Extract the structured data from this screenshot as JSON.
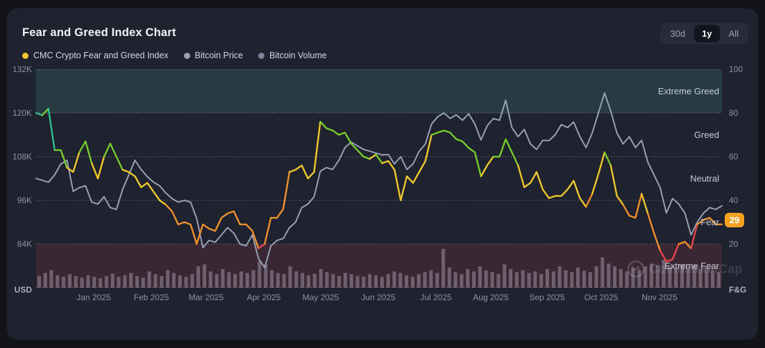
{
  "title": "Fear and Greed Index Chart",
  "controls": {
    "ranges": [
      {
        "label": "30d",
        "selected": false
      },
      {
        "label": "1y",
        "selected": true
      },
      {
        "label": "All",
        "selected": false
      }
    ]
  },
  "legend": [
    {
      "label": "CMC Crypto Fear and Greed Index",
      "color": "#efc72c"
    },
    {
      "label": "Bitcoin Price",
      "color": "#9aa1b4"
    },
    {
      "label": "Bitcoin Volume",
      "color": "#7d8499"
    }
  ],
  "watermark": {
    "text": "CoinMarketCap"
  },
  "badge": {
    "value": "29",
    "color": "#f3a321"
  },
  "axes": {
    "left": {
      "title": "USD",
      "ticks": [
        "132K",
        "120K",
        "108K",
        "96K",
        "84K"
      ]
    },
    "right": {
      "title": "F&G",
      "ticks": [
        "100",
        "80",
        "60",
        "40",
        "20"
      ]
    },
    "x": {
      "labels": [
        "Jan 2025",
        "Feb 2025",
        "Mar 2025",
        "Apr 2025",
        "May 2025",
        "Jun 2025",
        "Jul 2025",
        "Aug 2025",
        "Sep 2025",
        "Oct 2025",
        "Nov 2025"
      ],
      "positions": [
        0.084,
        0.168,
        0.248,
        0.332,
        0.415,
        0.499,
        0.583,
        0.663,
        0.745,
        0.824,
        0.909
      ]
    }
  },
  "zones": [
    {
      "name": "Extreme Greed",
      "min": 80,
      "max": 100,
      "line_color": "#2fbf90",
      "band_color": "#273c42"
    },
    {
      "name": "Greed",
      "min": 60,
      "max": 80,
      "line_color": "#76cc2c",
      "band_color": null
    },
    {
      "name": "Neutral",
      "min": 40,
      "max": 60,
      "line_color": "#efc92c",
      "band_color": null
    },
    {
      "name": "Fear",
      "min": 20,
      "max": 40,
      "line_color": "#f0912d",
      "band_color": null
    },
    {
      "name": "Extreme Fear",
      "min": 0,
      "max": 20,
      "line_color": "#e8444b",
      "band_color": "#3a2733"
    }
  ],
  "chart_data": {
    "type": "line",
    "title": "Fear and Greed Index Chart",
    "x_range": [
      "Nov 2024",
      "Nov 2025"
    ],
    "grid": "horizontal-dotted",
    "legend_position": "top-left",
    "left_axis": {
      "label": "USD",
      "unit": "thousand USD",
      "range_k": [
        72,
        132
      ],
      "ticks_k": [
        132,
        120,
        108,
        96,
        84
      ]
    },
    "right_axis": {
      "label": "F&G",
      "range": [
        0,
        100
      ],
      "ticks": [
        100,
        80,
        60,
        40,
        20
      ]
    },
    "current_value": 29,
    "series": [
      {
        "name": "CMC Crypto Fear and Greed Index",
        "axis": "right",
        "style": "multicolor-by-zone",
        "current": 29,
        "values": [
          80,
          79,
          82,
          63,
          63,
          55,
          53,
          62,
          67,
          57,
          50,
          60,
          66,
          60,
          54,
          53,
          51,
          46,
          48,
          44,
          40,
          38,
          35,
          29,
          30,
          29,
          20,
          29,
          27,
          26,
          32,
          34,
          35,
          29,
          29,
          26,
          18,
          20,
          32,
          32,
          36,
          53,
          54,
          56,
          50,
          53,
          76,
          73,
          72,
          70,
          71,
          66,
          63,
          60,
          59,
          61,
          57,
          58,
          54,
          40,
          51,
          48,
          53,
          58,
          70,
          71,
          72,
          71,
          68,
          67,
          64,
          62,
          51,
          56,
          60,
          60,
          68,
          62,
          56,
          46,
          48,
          53,
          45,
          41,
          42,
          42,
          45,
          49,
          41,
          37,
          43,
          52,
          62,
          56,
          42,
          38,
          33,
          32,
          43,
          34,
          25,
          17,
          12,
          13,
          20,
          21,
          18,
          29,
          31,
          32,
          29,
          29
        ]
      },
      {
        "name": "Bitcoin Price",
        "axis": "left",
        "unit": "thousand USD",
        "color": "#99a1b6",
        "values": [
          102,
          101.5,
          101,
          103,
          106,
          107,
          98.5,
          99.5,
          100,
          95.5,
          95,
          97,
          94,
          93.5,
          99,
          103,
          107,
          104.5,
          102.5,
          101,
          100,
          98,
          96.5,
          95.5,
          96,
          95.5,
          91,
          83,
          85,
          84.5,
          86.5,
          88.5,
          87,
          84,
          83.5,
          86.5,
          80,
          77.5,
          83.5,
          85,
          85.5,
          88.5,
          90,
          94,
          95,
          97,
          104,
          105,
          104.5,
          107,
          110.5,
          112,
          111,
          110,
          109.5,
          109,
          108.5,
          108.6,
          106,
          108,
          104.5,
          106,
          109.5,
          111.5,
          117,
          119,
          120,
          118.5,
          119.5,
          118,
          119.8,
          117,
          112.6,
          116.5,
          118.5,
          118,
          123.5,
          116,
          113.5,
          115.5,
          111.5,
          110,
          112.5,
          112.4,
          114,
          116.8,
          116,
          117.5,
          113.5,
          110.5,
          114.5,
          120,
          125.5,
          120.5,
          114.5,
          111.5,
          113.5,
          110.5,
          112.5,
          106.5,
          103,
          99.5,
          92.5,
          96.5,
          95,
          92.5,
          86.5,
          90,
          92.5,
          94,
          93.5,
          94.5
        ]
      },
      {
        "name": "Bitcoin Volume",
        "type": "bar",
        "unit": "relative",
        "color": "rgba(164,153,172,0.5)",
        "values": [
          0.3,
          0.38,
          0.45,
          0.32,
          0.28,
          0.35,
          0.3,
          0.26,
          0.32,
          0.28,
          0.24,
          0.3,
          0.36,
          0.28,
          0.32,
          0.38,
          0.3,
          0.26,
          0.42,
          0.35,
          0.3,
          0.45,
          0.38,
          0.32,
          0.28,
          0.35,
          0.55,
          0.6,
          0.42,
          0.35,
          0.48,
          0.4,
          0.35,
          0.42,
          0.38,
          0.45,
          0.68,
          0.6,
          0.45,
          0.38,
          0.35,
          0.55,
          0.42,
          0.38,
          0.32,
          0.36,
          0.48,
          0.4,
          0.35,
          0.3,
          0.38,
          0.35,
          0.3,
          0.28,
          0.35,
          0.32,
          0.28,
          0.35,
          0.42,
          0.38,
          0.32,
          0.28,
          0.35,
          0.4,
          0.45,
          0.38,
          1.0,
          0.52,
          0.4,
          0.35,
          0.48,
          0.42,
          0.55,
          0.45,
          0.4,
          0.35,
          0.6,
          0.48,
          0.4,
          0.45,
          0.38,
          0.42,
          0.35,
          0.48,
          0.42,
          0.55,
          0.45,
          0.4,
          0.52,
          0.44,
          0.4,
          0.55,
          0.78,
          0.62,
          0.55,
          0.48,
          0.42,
          0.5,
          0.45,
          0.55,
          0.62,
          0.58,
          0.72,
          0.55,
          0.5,
          0.6,
          0.52,
          0.58,
          0.48,
          0.52,
          0.45,
          0.4
        ]
      }
    ]
  }
}
